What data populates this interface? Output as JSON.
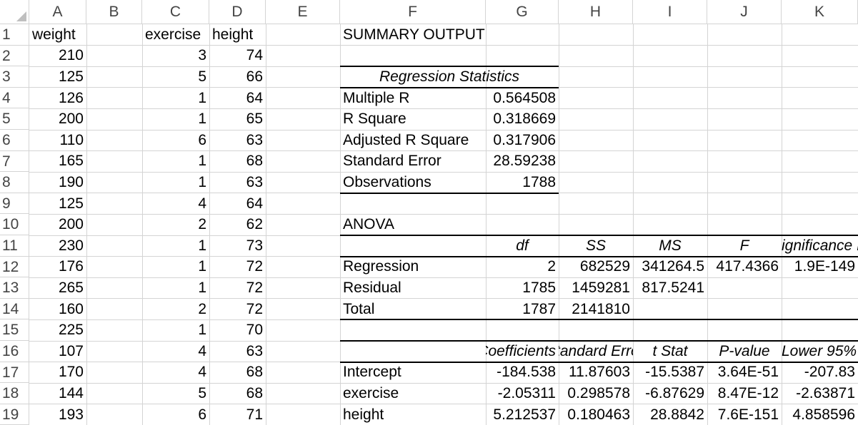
{
  "columns": [
    "A",
    "B",
    "C",
    "D",
    "E",
    "F",
    "G",
    "H",
    "I",
    "J",
    "K"
  ],
  "rows": [
    "1",
    "2",
    "3",
    "4",
    "5",
    "6",
    "7",
    "8",
    "9",
    "10",
    "11",
    "12",
    "13",
    "14",
    "15",
    "16",
    "17",
    "18",
    "19"
  ],
  "data_table": {
    "headers": {
      "weight": "weight",
      "exercise": "exercise",
      "height": "height"
    },
    "rows": [
      {
        "weight": "210",
        "exercise": "3",
        "height": "74"
      },
      {
        "weight": "125",
        "exercise": "5",
        "height": "66"
      },
      {
        "weight": "126",
        "exercise": "1",
        "height": "64"
      },
      {
        "weight": "200",
        "exercise": "1",
        "height": "65"
      },
      {
        "weight": "110",
        "exercise": "6",
        "height": "63"
      },
      {
        "weight": "165",
        "exercise": "1",
        "height": "68"
      },
      {
        "weight": "190",
        "exercise": "1",
        "height": "63"
      },
      {
        "weight": "125",
        "exercise": "4",
        "height": "64"
      },
      {
        "weight": "200",
        "exercise": "2",
        "height": "62"
      },
      {
        "weight": "230",
        "exercise": "1",
        "height": "73"
      },
      {
        "weight": "176",
        "exercise": "1",
        "height": "72"
      },
      {
        "weight": "265",
        "exercise": "1",
        "height": "72"
      },
      {
        "weight": "160",
        "exercise": "2",
        "height": "72"
      },
      {
        "weight": "225",
        "exercise": "1",
        "height": "70"
      },
      {
        "weight": "107",
        "exercise": "4",
        "height": "63"
      },
      {
        "weight": "170",
        "exercise": "4",
        "height": "68"
      },
      {
        "weight": "144",
        "exercise": "5",
        "height": "68"
      },
      {
        "weight": "193",
        "exercise": "6",
        "height": "71"
      }
    ]
  },
  "summary": {
    "title": "SUMMARY OUTPUT",
    "regression_statistics": {
      "header": "Regression Statistics",
      "rows": [
        {
          "label": "Multiple R",
          "value": "0.564508"
        },
        {
          "label": "R Square",
          "value": "0.318669"
        },
        {
          "label": "Adjusted R Square",
          "value": "0.317906"
        },
        {
          "label": "Standard Error",
          "value": "28.59238"
        },
        {
          "label": "Observations",
          "value": "1788"
        }
      ]
    },
    "anova": {
      "title": "ANOVA",
      "headers": {
        "df": "df",
        "ss": "SS",
        "ms": "MS",
        "f": "F",
        "sig": "Significance F"
      },
      "rows": [
        {
          "label": "Regression",
          "df": "2",
          "ss": "682529",
          "ms": "341264.5",
          "f": "417.4366",
          "sig": "1.9E-149"
        },
        {
          "label": "Residual",
          "df": "1785",
          "ss": "1459281",
          "ms": "817.5241",
          "f": "",
          "sig": ""
        },
        {
          "label": "Total",
          "df": "1787",
          "ss": "2141810",
          "ms": "",
          "f": "",
          "sig": ""
        }
      ]
    },
    "coefficients": {
      "headers": {
        "coef": "Coefficients",
        "se": "Standard Error",
        "t": "t Stat",
        "p": "P-value",
        "lower": "Lower 95%"
      },
      "rows": [
        {
          "label": "Intercept",
          "coef": "-184.538",
          "se": "11.87603",
          "t": "-15.5387",
          "p": "3.64E-51",
          "lower": "-207.83"
        },
        {
          "label": "exercise",
          "coef": "-2.05311",
          "se": "0.298578",
          "t": "-6.87629",
          "p": "8.47E-12",
          "lower": "-2.63871"
        },
        {
          "label": "height",
          "coef": "5.212537",
          "se": "0.180463",
          "t": "28.8842",
          "p": "7.6E-151",
          "lower": "4.858596"
        }
      ]
    }
  }
}
